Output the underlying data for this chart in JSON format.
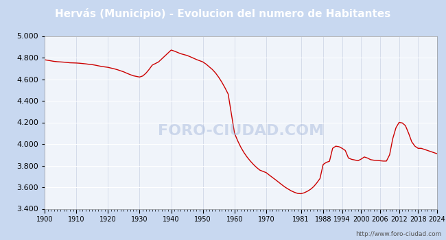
{
  "title": "Hervás (Municipio) - Evolucion del numero de Habitantes",
  "title_bg": "#4472c4",
  "title_color": "#ffffff",
  "line_color": "#cc0000",
  "fig_bg": "#c8d8f0",
  "plot_bg": "#f0f4fa",
  "grid_h_color": "#ffffff",
  "grid_v_color": "#d0d8e8",
  "watermark": "FORO-CIUDAD.COM",
  "url": "http://www.foro-ciudad.com",
  "ylim": [
    3400,
    5000
  ],
  "yticks": [
    3400,
    3600,
    3800,
    4000,
    4200,
    4400,
    4600,
    4800,
    5000
  ],
  "xtick_positions": [
    1900,
    1910,
    1920,
    1930,
    1940,
    1950,
    1960,
    1970,
    1981,
    1988,
    1994,
    2000,
    2006,
    2012,
    2018,
    2024
  ],
  "xticks_labels": [
    "1900",
    "1910",
    "1920",
    "1930",
    "1940",
    "1950",
    "1960",
    "1970",
    "1981",
    "1988",
    "1994",
    "2000",
    "2006",
    "2012",
    "2018",
    "2024"
  ],
  "xlim": [
    1900,
    2024
  ],
  "data": [
    [
      1900,
      4780
    ],
    [
      1901,
      4775
    ],
    [
      1902,
      4770
    ],
    [
      1903,
      4765
    ],
    [
      1904,
      4762
    ],
    [
      1905,
      4760
    ],
    [
      1906,
      4758
    ],
    [
      1907,
      4755
    ],
    [
      1908,
      4752
    ],
    [
      1910,
      4750
    ],
    [
      1911,
      4748
    ],
    [
      1912,
      4745
    ],
    [
      1913,
      4742
    ],
    [
      1914,
      4738
    ],
    [
      1915,
      4735
    ],
    [
      1916,
      4730
    ],
    [
      1917,
      4724
    ],
    [
      1918,
      4718
    ],
    [
      1920,
      4710
    ],
    [
      1921,
      4703
    ],
    [
      1922,
      4696
    ],
    [
      1923,
      4688
    ],
    [
      1924,
      4678
    ],
    [
      1925,
      4668
    ],
    [
      1926,
      4655
    ],
    [
      1927,
      4643
    ],
    [
      1928,
      4632
    ],
    [
      1930,
      4620
    ],
    [
      1931,
      4630
    ],
    [
      1932,
      4655
    ],
    [
      1933,
      4690
    ],
    [
      1934,
      4730
    ],
    [
      1936,
      4760
    ],
    [
      1940,
      4870
    ],
    [
      1941,
      4860
    ],
    [
      1942,
      4848
    ],
    [
      1943,
      4836
    ],
    [
      1945,
      4820
    ],
    [
      1946,
      4808
    ],
    [
      1947,
      4795
    ],
    [
      1948,
      4782
    ],
    [
      1950,
      4760
    ],
    [
      1951,
      4740
    ],
    [
      1952,
      4715
    ],
    [
      1953,
      4690
    ],
    [
      1954,
      4658
    ],
    [
      1955,
      4618
    ],
    [
      1956,
      4572
    ],
    [
      1957,
      4520
    ],
    [
      1958,
      4462
    ],
    [
      1960,
      4100
    ],
    [
      1961,
      4030
    ],
    [
      1962,
      3970
    ],
    [
      1963,
      3920
    ],
    [
      1964,
      3878
    ],
    [
      1965,
      3842
    ],
    [
      1966,
      3810
    ],
    [
      1967,
      3782
    ],
    [
      1968,
      3758
    ],
    [
      1970,
      3735
    ],
    [
      1971,
      3712
    ],
    [
      1972,
      3690
    ],
    [
      1973,
      3668
    ],
    [
      1974,
      3645
    ],
    [
      1975,
      3622
    ],
    [
      1976,
      3600
    ],
    [
      1977,
      3582
    ],
    [
      1978,
      3565
    ],
    [
      1979,
      3552
    ],
    [
      1980,
      3542
    ],
    [
      1981,
      3540
    ],
    [
      1982,
      3548
    ],
    [
      1983,
      3562
    ],
    [
      1984,
      3580
    ],
    [
      1985,
      3605
    ],
    [
      1986,
      3640
    ],
    [
      1987,
      3680
    ],
    [
      1988,
      3810
    ],
    [
      1989,
      3830
    ],
    [
      1990,
      3840
    ],
    [
      1991,
      3960
    ],
    [
      1992,
      3980
    ],
    [
      1993,
      3975
    ],
    [
      1994,
      3960
    ],
    [
      1995,
      3940
    ],
    [
      1996,
      3870
    ],
    [
      1997,
      3858
    ],
    [
      1998,
      3852
    ],
    [
      1999,
      3845
    ],
    [
      2000,
      3860
    ],
    [
      2001,
      3880
    ],
    [
      2002,
      3870
    ],
    [
      2003,
      3855
    ],
    [
      2004,
      3850
    ],
    [
      2005,
      3848
    ],
    [
      2006,
      3845
    ],
    [
      2007,
      3842
    ],
    [
      2008,
      3842
    ],
    [
      2009,
      3900
    ],
    [
      2010,
      4050
    ],
    [
      2011,
      4150
    ],
    [
      2012,
      4200
    ],
    [
      2013,
      4195
    ],
    [
      2014,
      4170
    ],
    [
      2015,
      4100
    ],
    [
      2016,
      4020
    ],
    [
      2017,
      3980
    ],
    [
      2018,
      3960
    ],
    [
      2019,
      3960
    ],
    [
      2020,
      3950
    ],
    [
      2021,
      3940
    ],
    [
      2022,
      3930
    ],
    [
      2023,
      3920
    ],
    [
      2024,
      3910
    ]
  ]
}
